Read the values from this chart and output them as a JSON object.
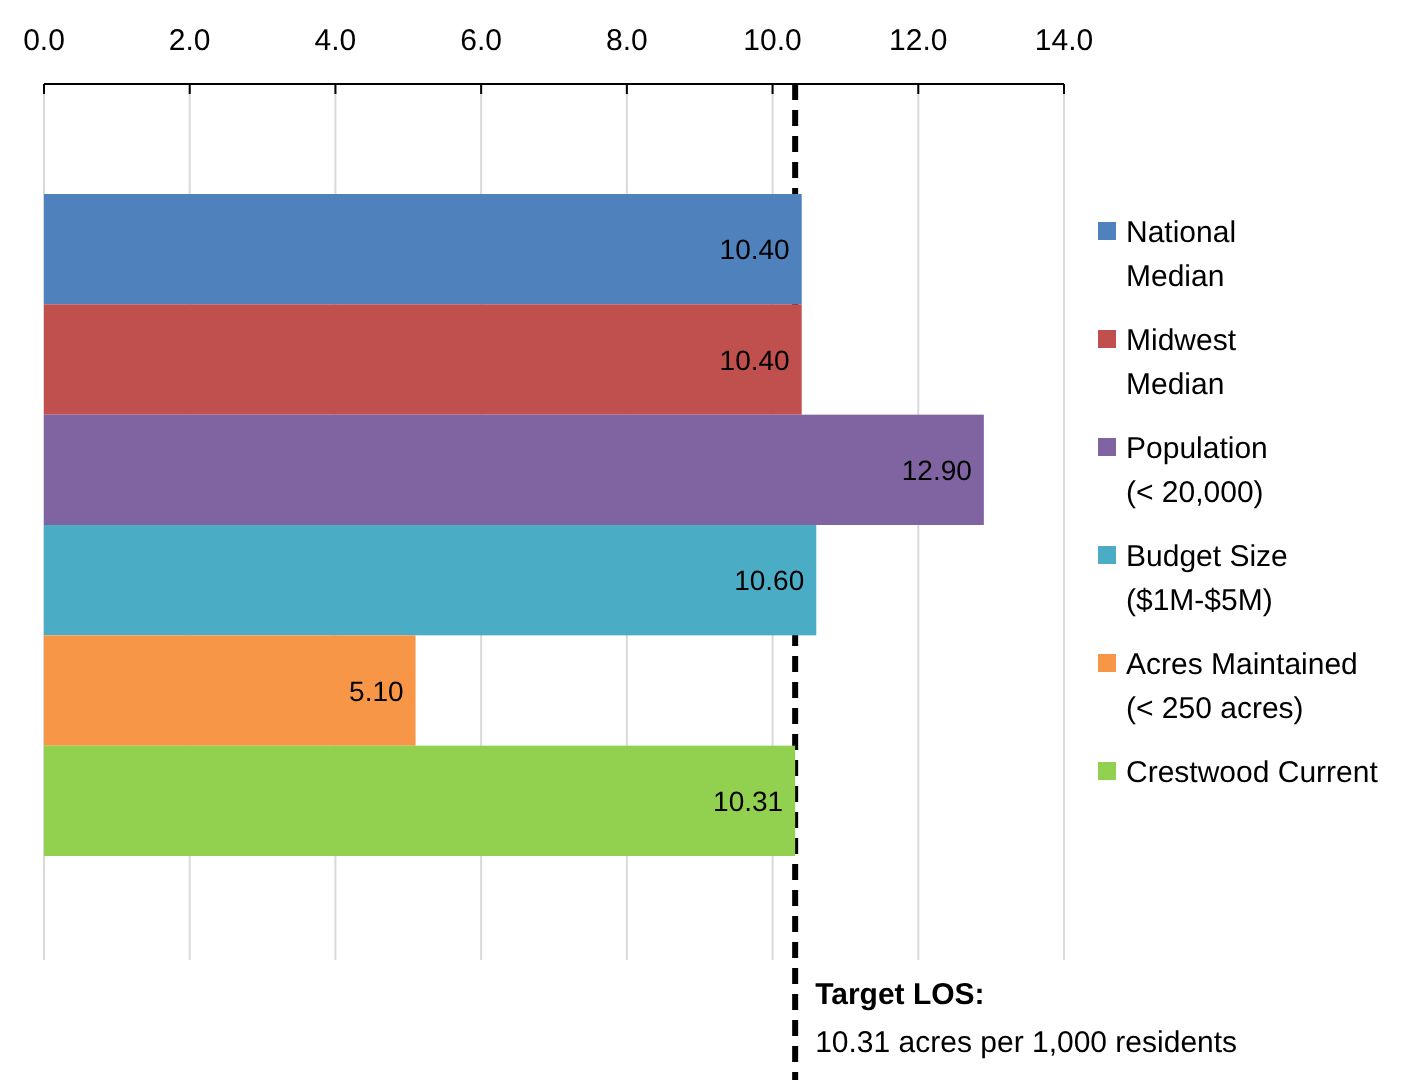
{
  "chart_data": {
    "type": "bar",
    "orientation": "horizontal",
    "categories": [
      null,
      null,
      null,
      null,
      null,
      null
    ],
    "series": [
      {
        "name": "National\nMedian",
        "color": "#4f81bd",
        "values": [
          10.4,
          null,
          null,
          null,
          null,
          null
        ],
        "value_labels": [
          "10.40",
          null,
          null,
          null,
          null,
          null
        ]
      },
      {
        "name": "Midwest\nMedian",
        "color": "#c0504d",
        "values": [
          null,
          10.4,
          null,
          null,
          null,
          null
        ],
        "value_labels": [
          null,
          "10.40",
          null,
          null,
          null,
          null
        ]
      },
      {
        "name": "Population\n(< 20,000)",
        "color": "#8064a2",
        "values": [
          null,
          null,
          12.9,
          null,
          null,
          null
        ],
        "value_labels": [
          null,
          null,
          "12.90",
          null,
          null,
          null
        ]
      },
      {
        "name": "Budget Size\n($1M-$5M)",
        "color": "#4bacc6",
        "values": [
          null,
          null,
          null,
          10.6,
          null,
          null
        ],
        "value_labels": [
          null,
          null,
          null,
          "10.60",
          null,
          null
        ]
      },
      {
        "name": "Acres Maintained\n(< 250 acres)",
        "color": "#f79646",
        "values": [
          null,
          null,
          null,
          null,
          5.1,
          null
        ],
        "value_labels": [
          null,
          null,
          null,
          null,
          "5.10",
          null
        ]
      },
      {
        "name": "Crestwood Current",
        "color": "#92d050",
        "values": [
          null,
          null,
          null,
          null,
          null,
          10.31
        ],
        "value_labels": [
          null,
          null,
          null,
          null,
          null,
          "10.31"
        ]
      }
    ],
    "xlim": [
      0,
      14
    ],
    "xticks": [
      {
        "value": 0,
        "label": "0.0"
      },
      {
        "value": 2,
        "label": "2.0"
      },
      {
        "value": 4,
        "label": "4.0"
      },
      {
        "value": 6,
        "label": "6.0"
      },
      {
        "value": 8,
        "label": "8.0"
      },
      {
        "value": 10,
        "label": "10.0"
      },
      {
        "value": 12,
        "label": "12.0"
      },
      {
        "value": 14,
        "label": "14.0"
      }
    ],
    "grid": "x",
    "legend": "right",
    "stacked": true,
    "ref_lines": [
      {
        "axis": "x",
        "value": 10.31,
        "label": "Target LOS:",
        "line_style": "dashed",
        "color": "#000000"
      }
    ],
    "annotations": [
      "10.31 acres per 1,000 residents"
    ]
  }
}
